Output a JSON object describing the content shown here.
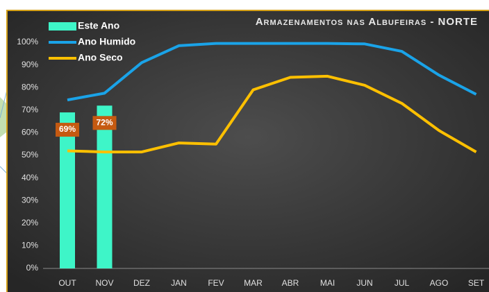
{
  "chart_data": {
    "type": "bar-line",
    "title": "Armazenamentos nas Albufeiras - NORTE",
    "categories": [
      "OUT",
      "NOV",
      "DEZ",
      "JAN",
      "FEV",
      "MAR",
      "ABR",
      "MAI",
      "JUN",
      "JUL",
      "AGO",
      "SET"
    ],
    "series": [
      {
        "name": "Este Ano",
        "type": "bar",
        "color": "#3ef5c8",
        "values": [
          69,
          72,
          null,
          null,
          null,
          null,
          null,
          null,
          null,
          null,
          null,
          null
        ],
        "value_labels": [
          "69%",
          "72%",
          null,
          null,
          null,
          null,
          null,
          null,
          null,
          null,
          null,
          null
        ]
      },
      {
        "name": "Ano Humido",
        "type": "line",
        "color": "#1aa3e8",
        "values": [
          74.5,
          77.5,
          91,
          98.5,
          99.5,
          99.5,
          99.5,
          99.5,
          99.3,
          96,
          85.5,
          77
        ]
      },
      {
        "name": "Ano Seco",
        "type": "line",
        "color": "#ffc000",
        "values": [
          52,
          51.5,
          51.5,
          55.5,
          55,
          79,
          84.5,
          85,
          81,
          73,
          61,
          51.5
        ]
      }
    ],
    "ylim": [
      0,
      100
    ],
    "yticks": [
      {
        "value": 0,
        "label": "0%"
      },
      {
        "value": 10,
        "label": "10%"
      },
      {
        "value": 20,
        "label": "20%"
      },
      {
        "value": 30,
        "label": "30%"
      },
      {
        "value": 40,
        "label": "40%"
      },
      {
        "value": 50,
        "label": "50%"
      },
      {
        "value": 60,
        "label": "60%"
      },
      {
        "value": 70,
        "label": "70%"
      },
      {
        "value": 80,
        "label": "80%"
      },
      {
        "value": 90,
        "label": "90%"
      },
      {
        "value": 100,
        "label": "100%"
      }
    ],
    "grid": false,
    "legend": "top-left"
  }
}
